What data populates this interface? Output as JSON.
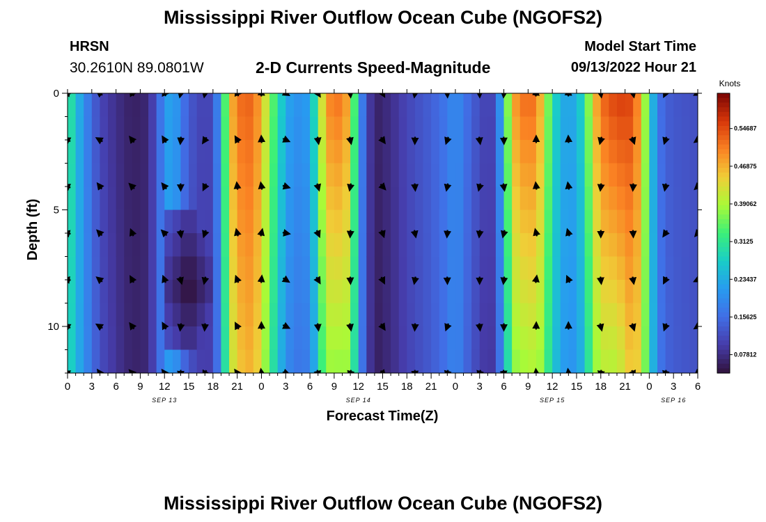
{
  "page": {
    "title": "Mississippi River Outflow Ocean Cube (NGOFS2)",
    "station": "HRSN",
    "coordinates": "30.2610N  89.0801W",
    "subtitle": "2-D Currents Speed-Magnitude",
    "model_start_label": "Model Start Time",
    "model_start_value": "09/13/2022 Hour 21",
    "bottom_title": "Mississippi River Outflow Ocean Cube (NGOFS2)"
  },
  "chart_data": {
    "type": "heatmap",
    "title": "2-D Currents Speed-Magnitude",
    "xlabel": "Forecast Time(Z)",
    "ylabel": "Depth (ft)",
    "x_hours_range": [
      0,
      78
    ],
    "ylim": [
      0,
      12
    ],
    "x_tick_labels": [
      "0",
      "3",
      "6",
      "9",
      "12",
      "15",
      "18",
      "21",
      "0",
      "3",
      "6",
      "9",
      "12",
      "15",
      "18",
      "21",
      "0",
      "3",
      "6",
      "9",
      "12",
      "15",
      "18",
      "21",
      "0",
      "3",
      "6"
    ],
    "y_tick_labels": [
      "0",
      "5",
      "10"
    ],
    "date_labels": [
      {
        "text": "SEP 13",
        "hour": 12
      },
      {
        "text": "SEP 14",
        "hour": 36
      },
      {
        "text": "SEP 15",
        "hour": 60
      },
      {
        "text": "SEP 16",
        "hour": 75
      }
    ],
    "colorbar": {
      "title": "Knots",
      "range": [
        0.04,
        0.62
      ],
      "tick_labels": [
        "0.54687",
        "0.46875",
        "0.39062",
        "0.3125",
        "0.23437",
        "0.15625",
        "0.07812"
      ],
      "tick_values": [
        0.54687,
        0.46875,
        0.39062,
        0.3125,
        0.23437,
        0.15625,
        0.07812
      ]
    },
    "speed_profile_surface": [
      {
        "hour": 0,
        "value": 0.33
      },
      {
        "hour": 1,
        "value": 0.26
      },
      {
        "hour": 2,
        "value": 0.2
      },
      {
        "hour": 3,
        "value": 0.15
      },
      {
        "hour": 4,
        "value": 0.11
      },
      {
        "hour": 6,
        "value": 0.08
      },
      {
        "hour": 8,
        "value": 0.06
      },
      {
        "hour": 10,
        "value": 0.07
      },
      {
        "hour": 11,
        "value": 0.13
      },
      {
        "hour": 12,
        "value": 0.2
      },
      {
        "hour": 13,
        "value": 0.24
      },
      {
        "hour": 14,
        "value": 0.17
      },
      {
        "hour": 16,
        "value": 0.11
      },
      {
        "hour": 18,
        "value": 0.11
      },
      {
        "hour": 19,
        "value": 0.24
      },
      {
        "hour": 20,
        "value": 0.44
      },
      {
        "hour": 21,
        "value": 0.52
      },
      {
        "hour": 23,
        "value": 0.53
      },
      {
        "hour": 24,
        "value": 0.46
      },
      {
        "hour": 25,
        "value": 0.38
      },
      {
        "hour": 26,
        "value": 0.3
      },
      {
        "hour": 27,
        "value": 0.24
      },
      {
        "hour": 28,
        "value": 0.2
      },
      {
        "hour": 30,
        "value": 0.22
      },
      {
        "hour": 31,
        "value": 0.35
      },
      {
        "hour": 32,
        "value": 0.5
      },
      {
        "hour": 34,
        "value": 0.52
      },
      {
        "hour": 35,
        "value": 0.45
      },
      {
        "hour": 36,
        "value": 0.22
      },
      {
        "hour": 37,
        "value": 0.12
      },
      {
        "hour": 38,
        "value": 0.06
      },
      {
        "hour": 40,
        "value": 0.08
      },
      {
        "hour": 42,
        "value": 0.11
      },
      {
        "hour": 45,
        "value": 0.14
      },
      {
        "hour": 47,
        "value": 0.17
      },
      {
        "hour": 48,
        "value": 0.2
      },
      {
        "hour": 50,
        "value": 0.14
      },
      {
        "hour": 52,
        "value": 0.1
      },
      {
        "hour": 53,
        "value": 0.12
      },
      {
        "hour": 54,
        "value": 0.28
      },
      {
        "hour": 55,
        "value": 0.46
      },
      {
        "hour": 56,
        "value": 0.52
      },
      {
        "hour": 58,
        "value": 0.52
      },
      {
        "hour": 59,
        "value": 0.42
      },
      {
        "hour": 60,
        "value": 0.3
      },
      {
        "hour": 61,
        "value": 0.24
      },
      {
        "hour": 62,
        "value": 0.22
      },
      {
        "hour": 63,
        "value": 0.24
      },
      {
        "hour": 64,
        "value": 0.3
      },
      {
        "hour": 65,
        "value": 0.44
      },
      {
        "hour": 66,
        "value": 0.52
      },
      {
        "hour": 68,
        "value": 0.56
      },
      {
        "hour": 70,
        "value": 0.55
      },
      {
        "hour": 71,
        "value": 0.46
      },
      {
        "hour": 72,
        "value": 0.3
      },
      {
        "hour": 73,
        "value": 0.17
      },
      {
        "hour": 74,
        "value": 0.14
      },
      {
        "hour": 75,
        "value": 0.13
      },
      {
        "hour": 78,
        "value": 0.12
      }
    ],
    "depth_modulation": [
      {
        "hour": 0,
        "d0": 0.0,
        "d12": -0.1
      },
      {
        "hour": 3,
        "d0": 0.0,
        "d12": 0.07
      },
      {
        "hour": 6,
        "d0": 0.0,
        "d12": 0.1
      },
      {
        "hour": 12,
        "d0": 0.0,
        "d12": -0.03
      },
      {
        "hour": 21,
        "d0": 0.0,
        "d12": -0.14
      },
      {
        "hour": 24,
        "d0": 0.0,
        "d12": -0.1
      },
      {
        "hour": 34,
        "d0": 0.0,
        "d12": -0.28
      },
      {
        "hour": 36,
        "d0": 0.0,
        "d12": -0.05
      },
      {
        "hour": 48,
        "d0": 0.0,
        "d12": -0.04
      },
      {
        "hour": 57,
        "d0": 0.0,
        "d12": -0.28
      },
      {
        "hour": 61,
        "d0": 0.0,
        "d12": -0.05
      },
      {
        "hour": 68,
        "d0": 0.0,
        "d12": -0.3
      },
      {
        "hour": 73,
        "d0": 0.0,
        "d12": 0.05
      },
      {
        "hour": 78,
        "d0": 0.0,
        "d12": 0.02
      }
    ],
    "dark_core": {
      "hour_range": [
        12,
        18
      ],
      "depth_range": [
        5.5,
        11
      ],
      "value": 0.035
    },
    "vectors": {
      "hours": [
        0,
        4,
        8,
        12,
        14,
        17,
        21,
        24,
        27,
        31,
        35,
        39,
        43,
        47,
        51,
        54,
        58,
        62,
        66,
        70,
        74,
        78
      ],
      "depths": [
        0,
        2,
        4,
        6,
        8,
        10,
        12
      ],
      "direction_deg_by_column": [
        200,
        225,
        240,
        240,
        90,
        110,
        250,
        270,
        20,
        70,
        90,
        60,
        90,
        100,
        95,
        95,
        270,
        260,
        90,
        80,
        110,
        140
      ]
    }
  }
}
